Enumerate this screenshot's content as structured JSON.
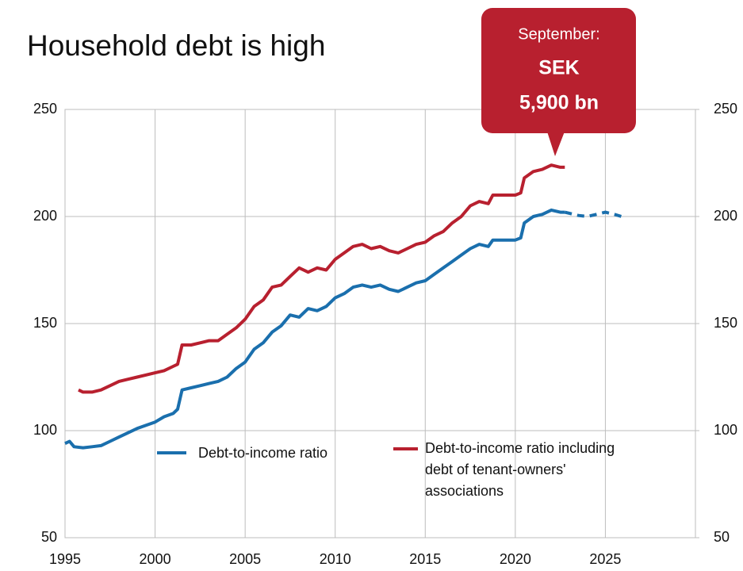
{
  "chart_data": {
    "type": "line",
    "title": "Household debt is high",
    "annotation": {
      "lines": [
        "September:",
        "SEK",
        "5,900 bn"
      ],
      "color": "#b8202f"
    },
    "xlim": [
      1995,
      2030
    ],
    "xticks": [
      1995,
      2000,
      2005,
      2010,
      2015,
      2020,
      2025
    ],
    "ylim": [
      50,
      250
    ],
    "yticks": [
      50,
      100,
      150,
      200,
      250
    ],
    "y2lim": [
      50,
      250
    ],
    "y2ticks": [
      50,
      100,
      150,
      200,
      250
    ],
    "grid": true,
    "series": [
      {
        "name": "Debt-to-income ratio",
        "color": "#1a6fad",
        "x": [
          1995,
          1995.25,
          1995.5,
          1996,
          1996.5,
          1997,
          1997.5,
          1998,
          1998.5,
          1999,
          1999.5,
          2000,
          2000.5,
          2001,
          2001.25,
          2001.5,
          2002,
          2002.5,
          2003,
          2003.5,
          2004,
          2004.5,
          2005,
          2005.5,
          2006,
          2006.5,
          2007,
          2007.5,
          2008,
          2008.5,
          2009,
          2009.5,
          2010,
          2010.5,
          2011,
          2011.5,
          2012,
          2012.5,
          2013,
          2013.5,
          2014,
          2014.5,
          2015,
          2015.5,
          2016,
          2016.5,
          2017,
          2017.5,
          2018,
          2018.5,
          2018.75,
          2019,
          2019.5,
          2020,
          2020.3,
          2020.5,
          2021,
          2021.5,
          2022,
          2022.5,
          2022.75
        ],
        "values": [
          94,
          95,
          92.5,
          92,
          92.5,
          93,
          95,
          97,
          99,
          101,
          102.5,
          104,
          106.5,
          108,
          110,
          119,
          120,
          121,
          122,
          123,
          125,
          129,
          132,
          138,
          141,
          146,
          149,
          154,
          153,
          157,
          156,
          158,
          162,
          164,
          167,
          168,
          167,
          168,
          166,
          165,
          167,
          169,
          170,
          173,
          176,
          179,
          182,
          185,
          187,
          186,
          189,
          189,
          189,
          189,
          190,
          197,
          200,
          201,
          203,
          202,
          202
        ],
        "forecast_x": [
          2022.75,
          2023.5,
          2024,
          2024.5,
          2025,
          2025.5,
          2025.9
        ],
        "forecast_values": [
          202,
          200.5,
          200,
          201,
          202,
          201,
          200
        ]
      },
      {
        "name": "Debt-to-income ratio including debt of tenant-owners' associations",
        "color": "#b8202f",
        "x": [
          1995.75,
          1996,
          1996.5,
          1997,
          1997.5,
          1998,
          1998.5,
          1999,
          1999.5,
          2000,
          2000.5,
          2001,
          2001.25,
          2001.5,
          2002,
          2002.5,
          2003,
          2003.5,
          2004,
          2004.5,
          2005,
          2005.5,
          2006,
          2006.5,
          2007,
          2007.5,
          2008,
          2008.5,
          2009,
          2009.5,
          2010,
          2010.5,
          2011,
          2011.5,
          2012,
          2012.5,
          2013,
          2013.5,
          2014,
          2014.5,
          2015,
          2015.5,
          2016,
          2016.5,
          2017,
          2017.5,
          2018,
          2018.5,
          2018.75,
          2019,
          2019.5,
          2020,
          2020.3,
          2020.5,
          2021,
          2021.5,
          2022,
          2022.5,
          2022.75
        ],
        "values": [
          119,
          118,
          118,
          119,
          121,
          123,
          124,
          125,
          126,
          127,
          128,
          130,
          131,
          140,
          140,
          141,
          142,
          142,
          145,
          148,
          152,
          158,
          161,
          167,
          168,
          172,
          176,
          174,
          176,
          175,
          180,
          183,
          186,
          187,
          185,
          186,
          184,
          183,
          185,
          187,
          188,
          191,
          193,
          197,
          200,
          205,
          207,
          206,
          210,
          210,
          210,
          210,
          211,
          218,
          221,
          222,
          224,
          223,
          223
        ]
      }
    ]
  }
}
